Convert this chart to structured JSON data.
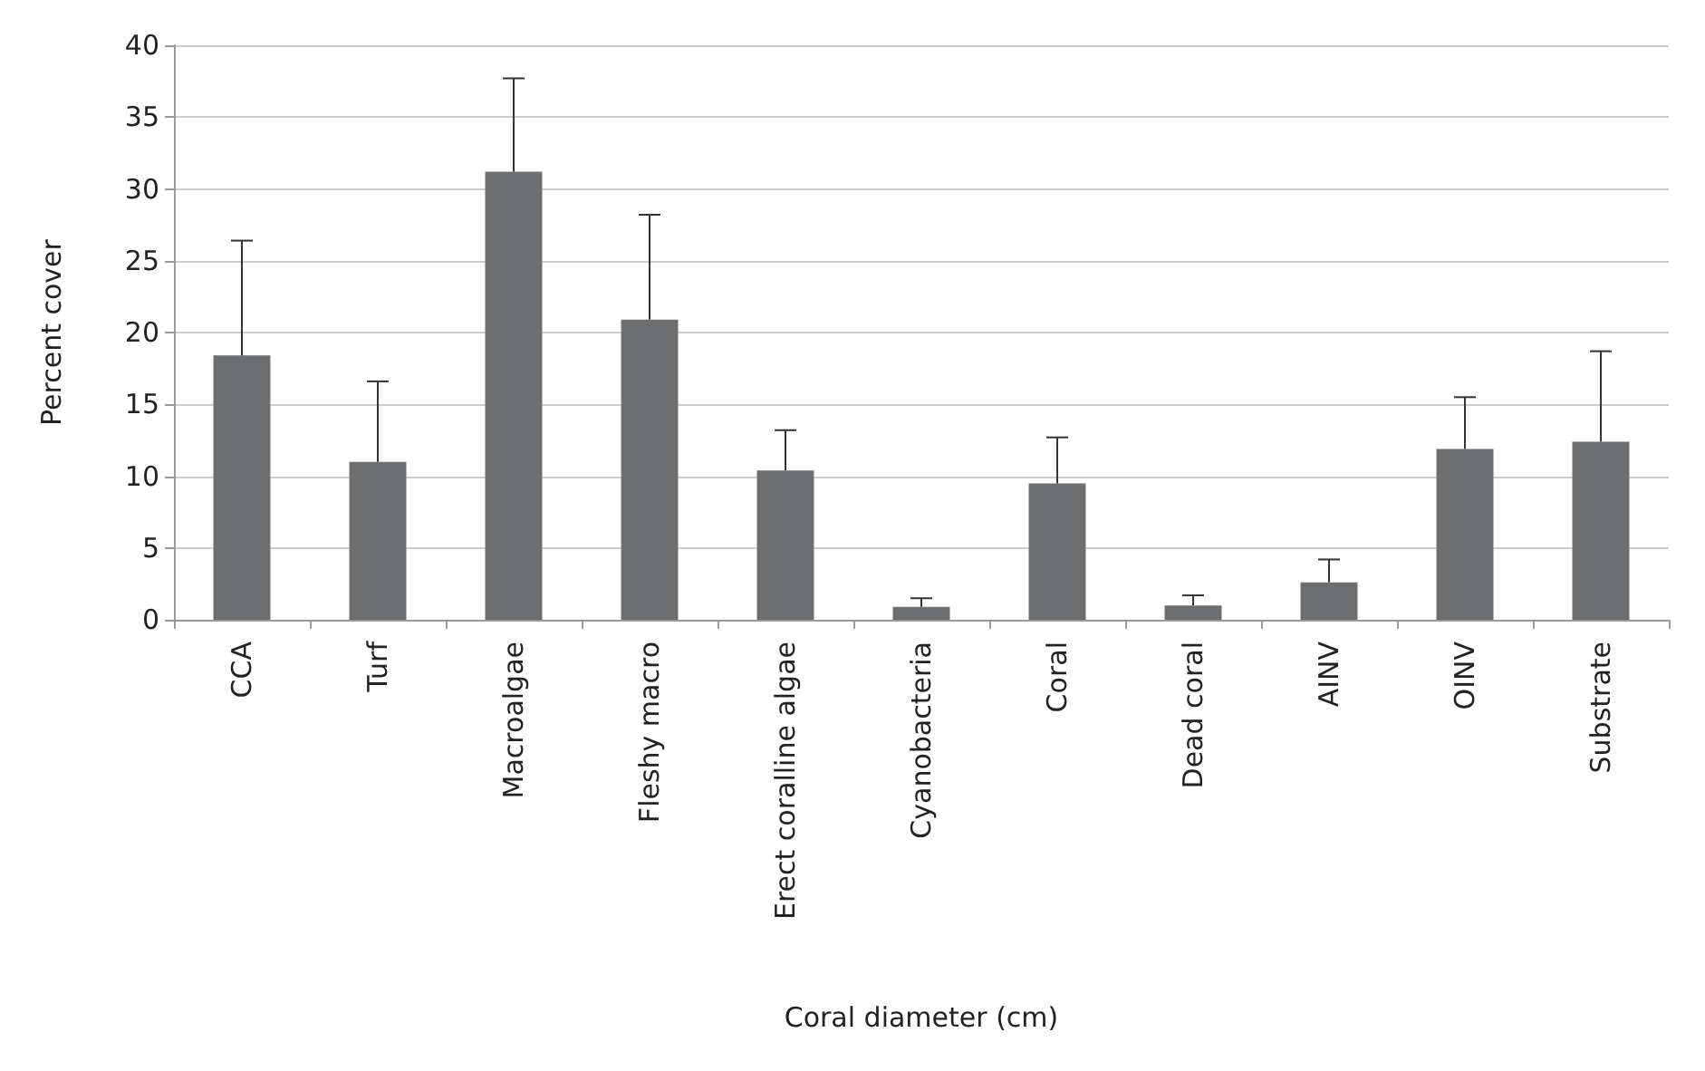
{
  "chart_data": {
    "type": "bar",
    "xlabel": "Coral diameter (cm)",
    "ylabel": "Percent cover",
    "categories": [
      "CCA",
      "Turf",
      "Macroalgae",
      "Fleshy macro",
      "Erect coralline algae",
      "Cyanobacteria",
      "Coral",
      "Dead coral",
      "AINV",
      "OINV",
      "Substrate"
    ],
    "values": [
      18.4,
      11.0,
      31.2,
      20.9,
      10.4,
      0.9,
      9.5,
      1.0,
      2.6,
      11.9,
      12.4
    ],
    "errors": [
      [
        18.4,
        26.4
      ],
      [
        11.0,
        16.6
      ],
      [
        31.2,
        37.7
      ],
      [
        20.9,
        28.2
      ],
      [
        10.4,
        13.2
      ],
      [
        0.9,
        1.5
      ],
      [
        9.5,
        12.7
      ],
      [
        1.0,
        1.7
      ],
      [
        2.6,
        4.2
      ],
      [
        11.9,
        15.5
      ],
      [
        12.4,
        18.7
      ]
    ],
    "color": "#6d6e70",
    "ylim": [
      0,
      40
    ],
    "yticks": [
      0,
      5,
      10,
      15,
      20,
      25,
      30,
      35,
      40
    ],
    "grid": "y"
  }
}
